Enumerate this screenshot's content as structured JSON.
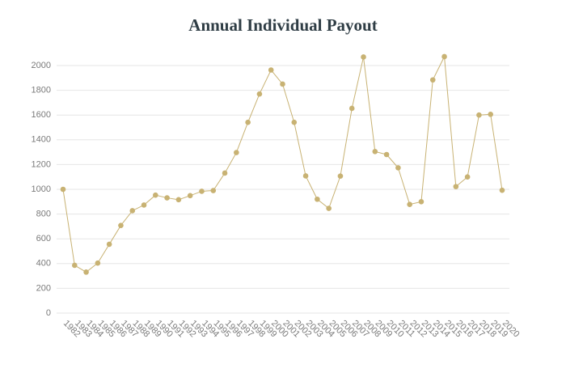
{
  "chart_data": {
    "type": "line",
    "title": "Annual Individual Payout",
    "categories": [
      "1982",
      "1983",
      "1984",
      "1985",
      "1986",
      "1987",
      "1988",
      "1989",
      "1990",
      "1991",
      "1992",
      "1993",
      "1994",
      "1995",
      "1996",
      "1997",
      "1998",
      "1999",
      "2000",
      "2001",
      "2002",
      "2003",
      "2004",
      "2005",
      "2006",
      "2007",
      "2008",
      "2009",
      "2010",
      "2011",
      "2012",
      "2013",
      "2014",
      "2015",
      "2016",
      "2017",
      "2018",
      "2019",
      "2020"
    ],
    "values": [
      1000,
      386,
      331,
      404,
      556,
      708,
      827,
      873,
      953,
      931,
      916,
      949,
      984,
      990,
      1131,
      1297,
      1541,
      1770,
      1964,
      1850,
      1541,
      1108,
      920,
      846,
      1107,
      1654,
      2069,
      1305,
      1281,
      1174,
      878,
      900,
      1884,
      2072,
      1022,
      1100,
      1600,
      1606,
      992
    ],
    "color": "#c8b273",
    "ylim": [
      0,
      2100
    ],
    "yticks": [
      0,
      200,
      400,
      600,
      800,
      1000,
      1200,
      1400,
      1600,
      1800,
      2000
    ],
    "grid": true
  }
}
